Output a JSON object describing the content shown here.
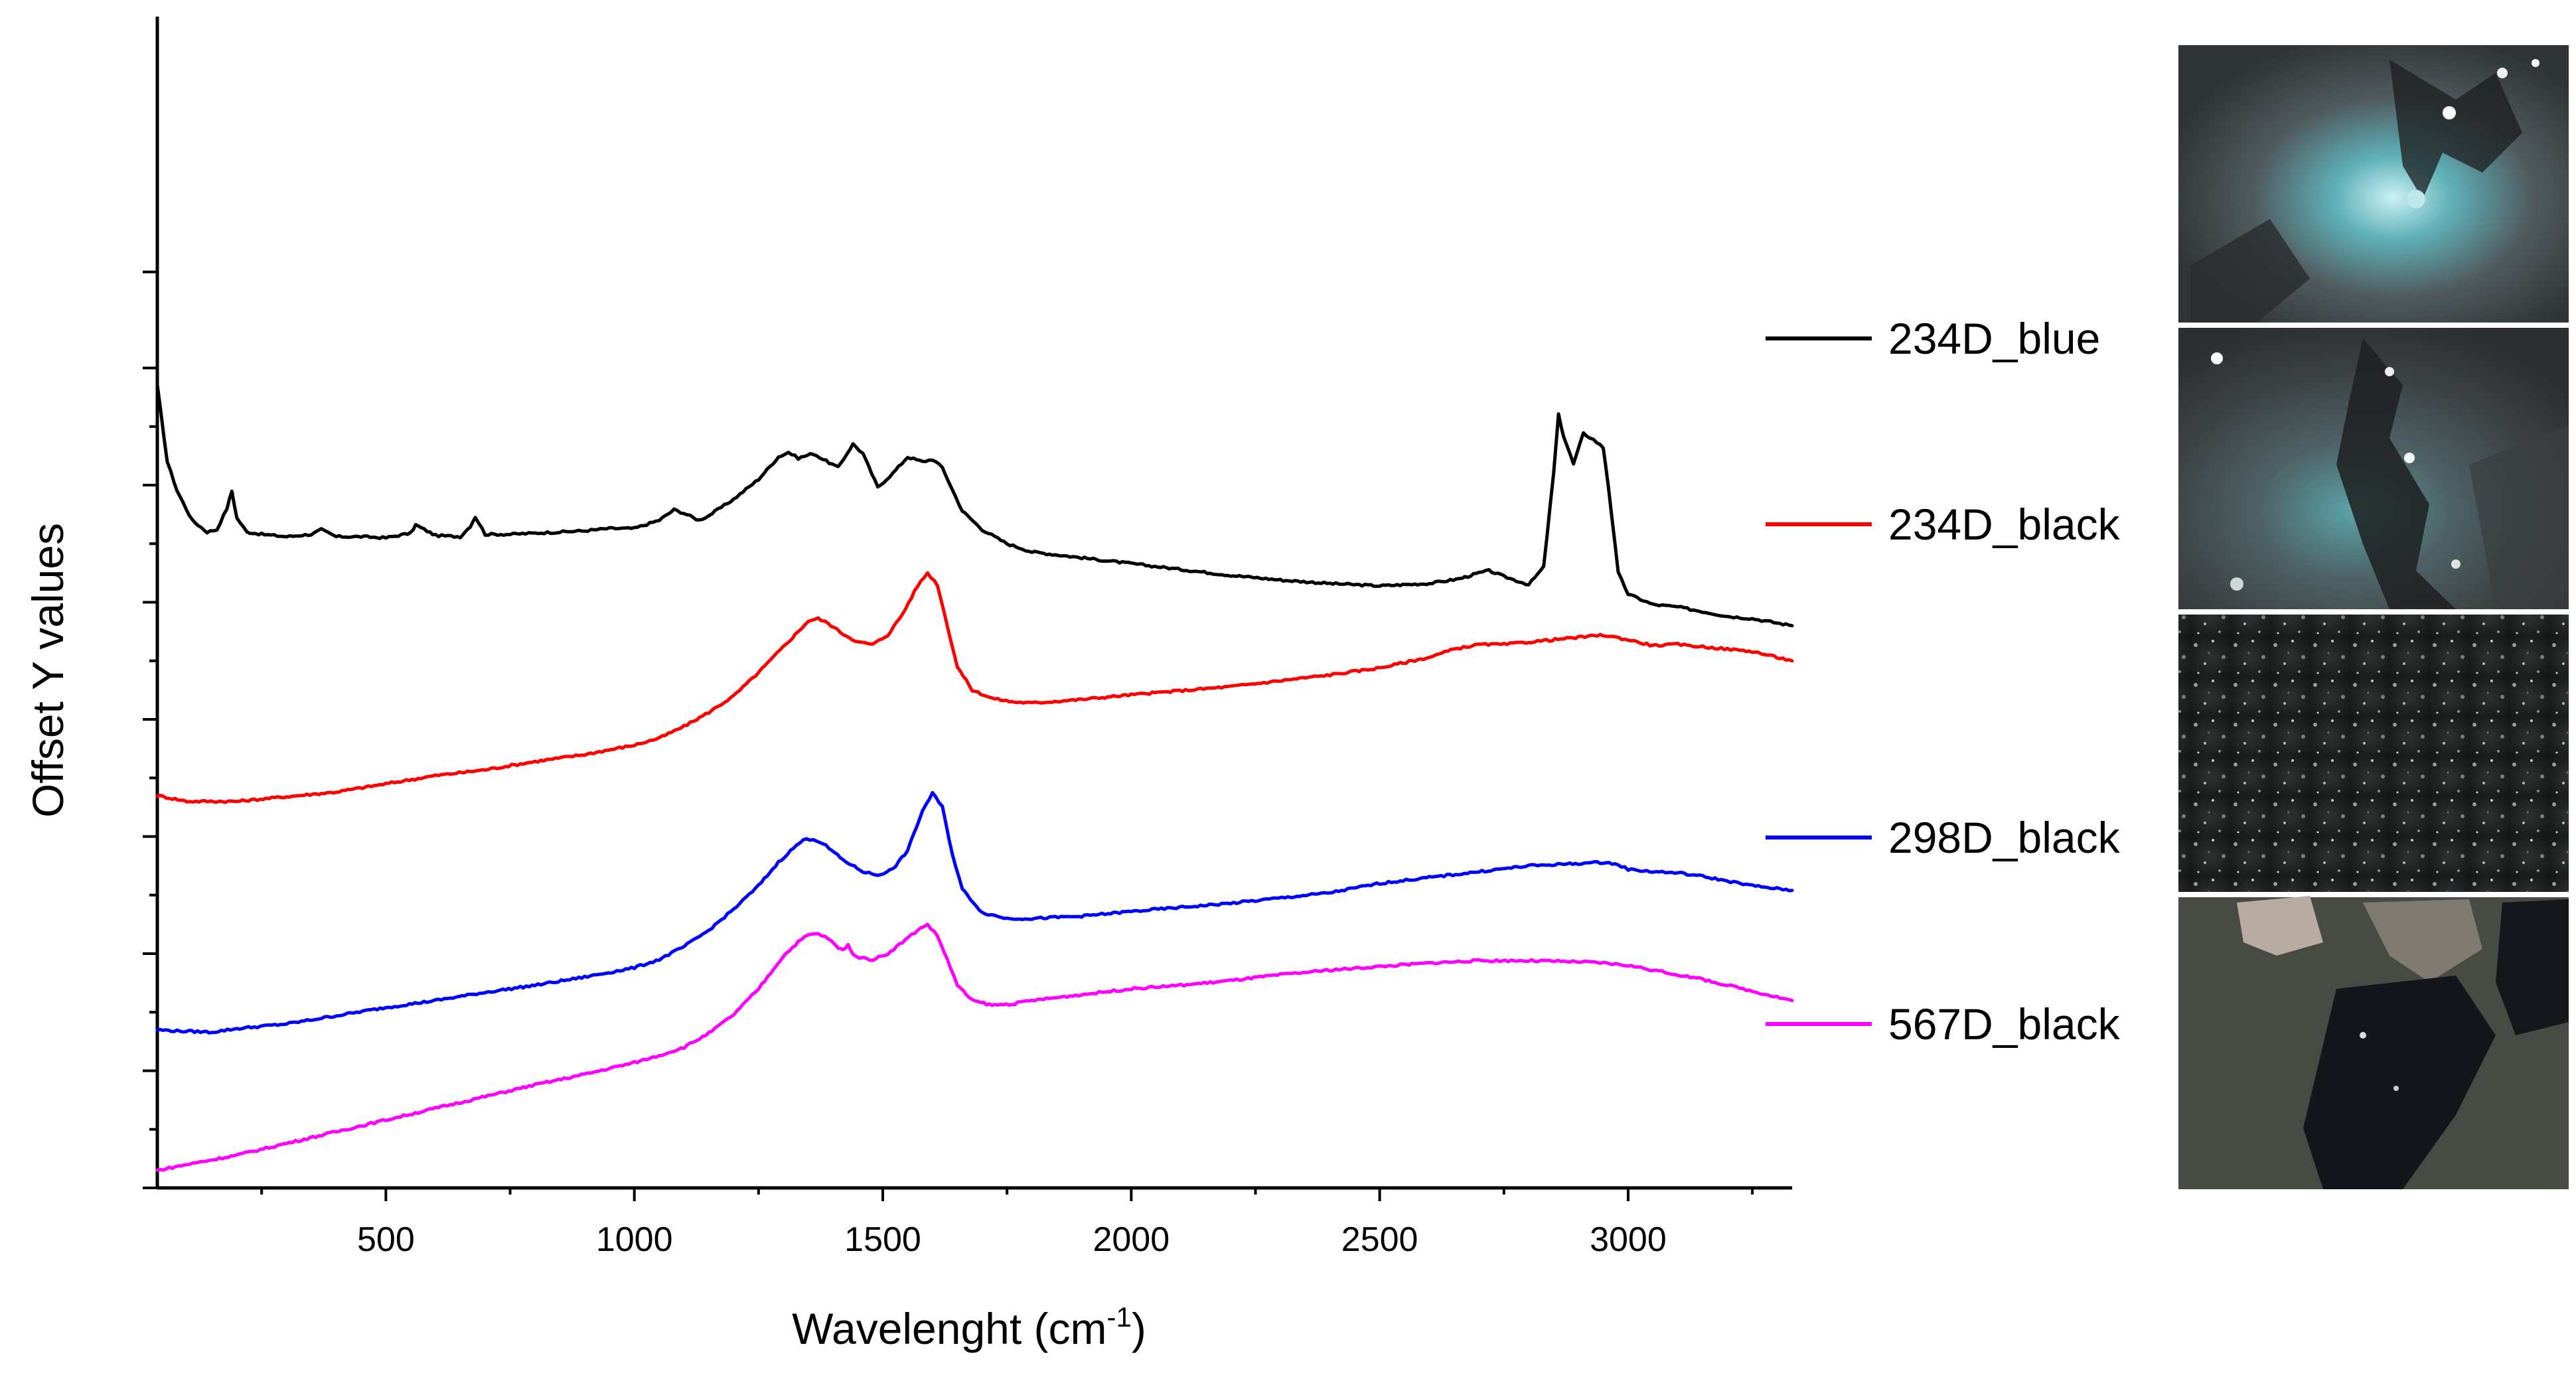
{
  "chart_data": {
    "type": "line",
    "title": "",
    "xlabel": "Wavelenght (cm",
    "xlabel_sup": "-1",
    "xlabel_tail": ")",
    "ylabel": "Offset Y values",
    "xlim": [
      40,
      3330
    ],
    "ylim": [
      0,
      10
    ],
    "x_ticks": [
      500,
      1000,
      1500,
      2000,
      2500,
      3000
    ],
    "x_tick_labels": [
      "500",
      "1000",
      "1500",
      "2000",
      "2500",
      "3000"
    ],
    "y_ticks_major": [
      0,
      1,
      2,
      3,
      4,
      5,
      6,
      7
    ],
    "y_ticks_minor": [
      0.5,
      1.5,
      2.5,
      3.5,
      4.5,
      5.5,
      6.5
    ],
    "y_tick_labels_shown": false,
    "series": [
      {
        "name": "234D_blue",
        "color": "#000000",
        "x": [
          40,
          60,
          80,
          110,
          140,
          160,
          180,
          190,
          200,
          220,
          250,
          300,
          350,
          370,
          400,
          450,
          500,
          550,
          560,
          600,
          650,
          670,
          680,
          700,
          750,
          800,
          850,
          900,
          950,
          1000,
          1050,
          1080,
          1100,
          1130,
          1150,
          1200,
          1250,
          1290,
          1310,
          1330,
          1360,
          1380,
          1410,
          1440,
          1460,
          1490,
          1520,
          1550,
          1580,
          1600,
          1620,
          1640,
          1660,
          1700,
          1750,
          1800,
          1900,
          2000,
          2100,
          2200,
          2300,
          2400,
          2500,
          2600,
          2660,
          2700,
          2720,
          2750,
          2800,
          2830,
          2850,
          2860,
          2870,
          2890,
          2910,
          2930,
          2950,
          2960,
          2980,
          3000,
          3050,
          3100,
          3150,
          3200,
          3250,
          3330
        ],
        "y": [
          6.85,
          6.2,
          5.95,
          5.7,
          5.6,
          5.62,
          5.8,
          5.95,
          5.72,
          5.6,
          5.58,
          5.56,
          5.58,
          5.62,
          5.56,
          5.56,
          5.55,
          5.59,
          5.66,
          5.57,
          5.56,
          5.65,
          5.73,
          5.58,
          5.58,
          5.59,
          5.6,
          5.61,
          5.63,
          5.63,
          5.7,
          5.79,
          5.76,
          5.7,
          5.74,
          5.88,
          6.05,
          6.24,
          6.28,
          6.23,
          6.27,
          6.22,
          6.15,
          6.35,
          6.27,
          5.98,
          6.1,
          6.24,
          6.2,
          6.22,
          6.15,
          5.96,
          5.78,
          5.62,
          5.5,
          5.43,
          5.38,
          5.33,
          5.28,
          5.23,
          5.19,
          5.16,
          5.14,
          5.16,
          5.2,
          5.25,
          5.27,
          5.22,
          5.15,
          5.3,
          6.1,
          6.6,
          6.42,
          6.18,
          6.44,
          6.39,
          6.32,
          6.0,
          5.25,
          5.07,
          4.98,
          4.96,
          4.92,
          4.88,
          4.86,
          4.8
        ]
      },
      {
        "name": "234D_black",
        "color": "#ff0000",
        "x": [
          40,
          100,
          200,
          300,
          400,
          500,
          600,
          700,
          800,
          900,
          1000,
          1050,
          1100,
          1150,
          1200,
          1250,
          1300,
          1330,
          1350,
          1370,
          1390,
          1420,
          1450,
          1480,
          1510,
          1540,
          1570,
          1590,
          1610,
          1630,
          1650,
          1680,
          1720,
          1760,
          1800,
          1900,
          2000,
          2200,
          2400,
          2500,
          2600,
          2650,
          2700,
          2750,
          2800,
          2900,
          2950,
          3000,
          3050,
          3100,
          3150,
          3200,
          3250,
          3330
        ],
        "y": [
          3.35,
          3.3,
          3.3,
          3.34,
          3.38,
          3.45,
          3.52,
          3.57,
          3.64,
          3.7,
          3.78,
          3.84,
          3.94,
          4.06,
          4.2,
          4.4,
          4.62,
          4.75,
          4.84,
          4.86,
          4.82,
          4.73,
          4.66,
          4.64,
          4.72,
          4.9,
          5.14,
          5.25,
          5.15,
          4.8,
          4.45,
          4.25,
          4.18,
          4.15,
          4.14,
          4.17,
          4.21,
          4.28,
          4.38,
          4.44,
          4.53,
          4.6,
          4.64,
          4.64,
          4.66,
          4.7,
          4.72,
          4.68,
          4.63,
          4.64,
          4.62,
          4.6,
          4.58,
          4.5
        ]
      },
      {
        "name": "298D_black",
        "color": "#0000ff",
        "x": [
          40,
          80,
          150,
          200,
          300,
          400,
          500,
          600,
          700,
          800,
          900,
          1000,
          1050,
          1100,
          1150,
          1200,
          1250,
          1290,
          1320,
          1340,
          1360,
          1380,
          1420,
          1460,
          1490,
          1520,
          1550,
          1580,
          1600,
          1620,
          1640,
          1660,
          1700,
          1750,
          1800,
          1900,
          2000,
          2200,
          2400,
          2500,
          2600,
          2700,
          2800,
          2900,
          2950,
          2980,
          3000,
          3050,
          3100,
          3150,
          3200,
          3250,
          3330
        ],
        "y": [
          1.35,
          1.34,
          1.33,
          1.36,
          1.4,
          1.47,
          1.54,
          1.6,
          1.67,
          1.73,
          1.8,
          1.88,
          1.95,
          2.06,
          2.2,
          2.38,
          2.58,
          2.78,
          2.9,
          2.97,
          2.98,
          2.94,
          2.8,
          2.7,
          2.67,
          2.72,
          2.88,
          3.22,
          3.37,
          3.25,
          2.85,
          2.55,
          2.35,
          2.3,
          2.3,
          2.32,
          2.36,
          2.43,
          2.52,
          2.6,
          2.65,
          2.7,
          2.75,
          2.77,
          2.78,
          2.76,
          2.72,
          2.7,
          2.69,
          2.66,
          2.62,
          2.58,
          2.54
        ]
      },
      {
        "name": "567D_black",
        "color": "#ff00ff",
        "x": [
          40,
          100,
          200,
          300,
          400,
          500,
          600,
          700,
          800,
          900,
          1000,
          1050,
          1100,
          1150,
          1200,
          1250,
          1300,
          1330,
          1350,
          1370,
          1390,
          1410,
          1420,
          1430,
          1440,
          1460,
          1480,
          1510,
          1540,
          1570,
          1590,
          1610,
          1630,
          1650,
          1680,
          1720,
          1760,
          1800,
          1900,
          2000,
          2100,
          2200,
          2300,
          2400,
          2500,
          2600,
          2700,
          2800,
          2900,
          2950,
          3000,
          3050,
          3100,
          3150,
          3200,
          3250,
          3330
        ],
        "y": [
          0.15,
          0.2,
          0.28,
          0.38,
          0.48,
          0.58,
          0.68,
          0.78,
          0.88,
          0.97,
          1.07,
          1.13,
          1.2,
          1.32,
          1.48,
          1.7,
          1.98,
          2.1,
          2.16,
          2.17,
          2.13,
          2.05,
          2.03,
          2.08,
          1.99,
          1.96,
          1.95,
          2.0,
          2.1,
          2.2,
          2.25,
          2.15,
          1.95,
          1.73,
          1.6,
          1.56,
          1.57,
          1.6,
          1.65,
          1.7,
          1.73,
          1.77,
          1.82,
          1.86,
          1.89,
          1.92,
          1.94,
          1.94,
          1.93,
          1.92,
          1.9,
          1.86,
          1.82,
          1.78,
          1.73,
          1.68,
          1.6
        ]
      }
    ],
    "legend_position": "right",
    "photo_panels": [
      {
        "name": "234D_blue",
        "description_icon": "micrograph-grey-blue"
      },
      {
        "name": "234D_black",
        "description_icon": "micrograph-grey-teal"
      },
      {
        "name": "298D_black",
        "description_icon": "micrograph-dark-speckled"
      },
      {
        "name": "567D_black",
        "description_icon": "micrograph-black-fragments"
      }
    ]
  }
}
